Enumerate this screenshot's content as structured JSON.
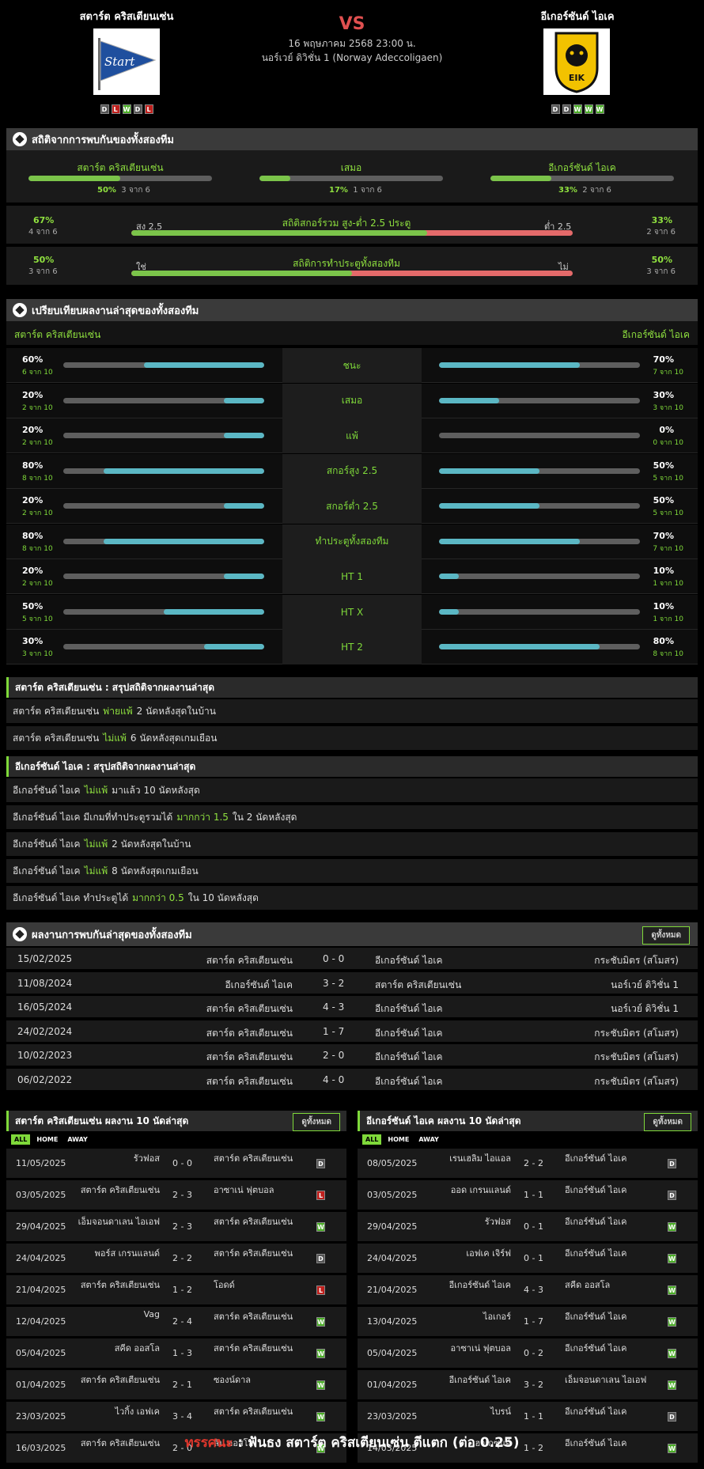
{
  "match": {
    "home": "สตาร์ต คริสเตียนเซ่น",
    "away": "อีเกอร์ซันด์ ไอเค",
    "vs": "VS",
    "date": "16 พฤษภาคม 2568 23:00 น.",
    "league": "นอร์เวย์ ดิวิชั่น 1 (Norway Adeccoligaen)",
    "home_form": [
      "D",
      "L",
      "W",
      "D",
      "L"
    ],
    "away_form": [
      "D",
      "D",
      "W",
      "W",
      "W"
    ],
    "home_logo_text": "Start",
    "away_logo_text": "EIK"
  },
  "h2h_stats": {
    "title": "สถิติจากการพบกันของทั้งสองทีม",
    "home": {
      "label": "สตาร์ต คริสเตียนเซ่น",
      "pct": "50%",
      "count": "3 จาก 6",
      "frac": 0.5
    },
    "draw": {
      "label": "เสมอ",
      "pct": "17%",
      "count": "1 จาก 6",
      "frac": 0.17
    },
    "away": {
      "label": "อีเกอร์ซันด์ ไอเค",
      "pct": "33%",
      "count": "2 จาก 6",
      "frac": 0.33
    }
  },
  "ou": {
    "title": "สถิติสกอร์รวม สูง-ต่ำ 2.5 ประตู",
    "left_pct": "67%",
    "left_count": "4 จาก 6",
    "left_lbl": "สูง 2.5",
    "right_lbl": "ต่ำ 2.5",
    "right_pct": "33%",
    "right_count": "2 จาก 6",
    "frac": 0.67
  },
  "btts": {
    "title": "สถิติการทำประตูทั้งสองทีม",
    "left_pct": "50%",
    "left_count": "3 จาก 6",
    "left_lbl": "ใช่",
    "right_lbl": "ไม่",
    "right_pct": "50%",
    "right_count": "3 จาก 6",
    "frac": 0.5
  },
  "compare": {
    "title": "เปรียบเทียบผลงานล่าสุดของทั้งสองทีม",
    "home": "สตาร์ต คริสเตียนเซ่น",
    "away": "อีเกอร์ซันด์ ไอเค",
    "rows": [
      {
        "label": "ชนะ",
        "hp": "60%",
        "hs": "6 จาก 10",
        "hf": 0.6,
        "ap": "70%",
        "as": "7 จาก 10",
        "af": 0.7
      },
      {
        "label": "เสมอ",
        "hp": "20%",
        "hs": "2 จาก 10",
        "hf": 0.2,
        "ap": "30%",
        "as": "3 จาก 10",
        "af": 0.3
      },
      {
        "label": "แพ้",
        "hp": "20%",
        "hs": "2 จาก 10",
        "hf": 0.2,
        "ap": "0%",
        "as": "0 จาก 10",
        "af": 0
      },
      {
        "label": "สกอร์สูง 2.5",
        "hp": "80%",
        "hs": "8 จาก 10",
        "hf": 0.8,
        "ap": "50%",
        "as": "5 จาก 10",
        "af": 0.5
      },
      {
        "label": "สกอร์ต่ำ 2.5",
        "hp": "20%",
        "hs": "2 จาก 10",
        "hf": 0.2,
        "ap": "50%",
        "as": "5 จาก 10",
        "af": 0.5
      },
      {
        "label": "ทำประตูทั้งสองทีม",
        "hp": "80%",
        "hs": "8 จาก 10",
        "hf": 0.8,
        "ap": "70%",
        "as": "7 จาก 10",
        "af": 0.7
      },
      {
        "label": "HT 1",
        "hp": "20%",
        "hs": "2 จาก 10",
        "hf": 0.2,
        "ap": "10%",
        "as": "1 จาก 10",
        "af": 0.1
      },
      {
        "label": "HT X",
        "hp": "50%",
        "hs": "5 จาก 10",
        "hf": 0.5,
        "ap": "10%",
        "as": "1 จาก 10",
        "af": 0.1
      },
      {
        "label": "HT 2",
        "hp": "30%",
        "hs": "3 จาก 10",
        "hf": 0.3,
        "ap": "80%",
        "as": "8 จาก 10",
        "af": 0.8
      }
    ]
  },
  "home_summary": {
    "title": "สตาร์ต คริสเตียนเซ่น : สรุปสถิติจากผลงานล่าสุด",
    "rows": [
      {
        "a": "สตาร์ต คริสเตียนเซ่น",
        "g": "พ่ายแพ้",
        "b": "2 นัดหลังสุดในบ้าน"
      },
      {
        "a": "สตาร์ต คริสเตียนเซ่น",
        "g": "ไม่แพ้",
        "b": "6 นัดหลังสุดเกมเยือน"
      }
    ]
  },
  "away_summary": {
    "title": "อีเกอร์ซันด์ ไอเค : สรุปสถิติจากผลงานล่าสุด",
    "rows": [
      {
        "a": "อีเกอร์ซันด์ ไอเค",
        "g": "ไม่แพ้",
        "b": "มาแล้ว 10 นัดหลังสุด"
      },
      {
        "a": "อีเกอร์ซันด์ ไอเค มีเกมที่ทำประตูรวมได้",
        "g": "มากกว่า 1.5",
        "b": "ใน 2 นัดหลังสุด"
      },
      {
        "a": "อีเกอร์ซันด์ ไอเค",
        "g": "ไม่แพ้",
        "b": "2 นัดหลังสุดในบ้าน"
      },
      {
        "a": "อีเกอร์ซันด์ ไอเค",
        "g": "ไม่แพ้",
        "b": "8 นัดหลังสุดเกมเยือน"
      },
      {
        "a": "อีเกอร์ซันด์ ไอเค ทำประตูได้",
        "g": "มากกว่า 0.5",
        "b": "ใน 10 นัดหลังสุด"
      }
    ]
  },
  "h2h": {
    "title": "ผลงานการพบกันล่าสุดของทั้งสองทีม",
    "view_all": "ดูทั้งหมด",
    "rows": [
      {
        "d": "15/02/2025",
        "h": "สตาร์ต คริสเตียนเซ่น",
        "s": "0 - 0",
        "a": "อีเกอร์ซันด์ ไอเค",
        "c": "กระชับมิตร (สโมสร)"
      },
      {
        "d": "11/08/2024",
        "h": "อีเกอร์ซันด์ ไอเค",
        "s": "3 - 2",
        "a": "สตาร์ต คริสเตียนเซ่น",
        "c": "นอร์เวย์ ดิวิชั่น 1"
      },
      {
        "d": "16/05/2024",
        "h": "สตาร์ต คริสเตียนเซ่น",
        "s": "4 - 3",
        "a": "อีเกอร์ซันด์ ไอเค",
        "c": "นอร์เวย์ ดิวิชั่น 1"
      },
      {
        "d": "24/02/2024",
        "h": "สตาร์ต คริสเตียนเซ่น",
        "s": "1 - 7",
        "a": "อีเกอร์ซันด์ ไอเค",
        "c": "กระชับมิตร (สโมสร)"
      },
      {
        "d": "10/02/2023",
        "h": "สตาร์ต คริสเตียนเซ่น",
        "s": "2 - 0",
        "a": "อีเกอร์ซันด์ ไอเค",
        "c": "กระชับมิตร (สโมสร)"
      },
      {
        "d": "06/02/2022",
        "h": "สตาร์ต คริสเตียนเซ่น",
        "s": "4 - 0",
        "a": "อีเกอร์ซันด์ ไอเค",
        "c": "กระชับมิตร (สโมสร)"
      }
    ]
  },
  "filters": [
    "ALL",
    "HOME",
    "AWAY"
  ],
  "home_last": {
    "title": "สตาร์ต คริสเตียนเซ่น ผลงาน 10 นัดล่าสุด",
    "view_all": "ดูทั้งหมด",
    "rows": [
      {
        "d": "11/05/2025",
        "h": "รัวฟอส",
        "s": "0 - 0",
        "a": "สตาร์ต คริสเตียนเซ่น",
        "r": "D"
      },
      {
        "d": "03/05/2025",
        "h": "สตาร์ต คริสเตียนเซ่น",
        "s": "2 - 3",
        "a": "อาซาเน่ ฟุตบอล",
        "r": "L"
      },
      {
        "d": "29/04/2025",
        "h": "เอ็มจอนดาเลน ไอเอฟ",
        "s": "2 - 3",
        "a": "สตาร์ต คริสเตียนเซ่น",
        "r": "W"
      },
      {
        "d": "24/04/2025",
        "h": "พอร์ส เกรนแลนด์",
        "s": "2 - 2",
        "a": "สตาร์ต คริสเตียนเซ่น",
        "r": "D"
      },
      {
        "d": "21/04/2025",
        "h": "สตาร์ต คริสเตียนเซ่น",
        "s": "1 - 2",
        "a": "โอดด์",
        "r": "L"
      },
      {
        "d": "12/04/2025",
        "h": "Vag",
        "s": "2 - 4",
        "a": "สตาร์ต คริสเตียนเซ่น",
        "r": "W"
      },
      {
        "d": "05/04/2025",
        "h": "สคีด ออสโล",
        "s": "1 - 3",
        "a": "สตาร์ต คริสเตียนเซ่น",
        "r": "W"
      },
      {
        "d": "01/04/2025",
        "h": "สตาร์ต คริสเตียนเซ่น",
        "s": "2 - 1",
        "a": "ซองน์ดาล",
        "r": "W"
      },
      {
        "d": "23/03/2025",
        "h": "ไวกิ้ง เอฟเค",
        "s": "3 - 4",
        "a": "สตาร์ต คริสเตียนเซ่น",
        "r": "W"
      },
      {
        "d": "16/03/2025",
        "h": "สตาร์ต คริสเตียนเซ่น",
        "s": "2 - 0",
        "a": "ลิน ออสโล",
        "r": "W"
      }
    ]
  },
  "away_last": {
    "title": "อีเกอร์ซันด์ ไอเค ผลงาน 10 นัดล่าสุด",
    "view_all": "ดูทั้งหมด",
    "rows": [
      {
        "d": "08/05/2025",
        "h": "เรนเฮลิม ไอแอล",
        "s": "2 - 2",
        "a": "อีเกอร์ซันด์ ไอเค",
        "r": "D"
      },
      {
        "d": "03/05/2025",
        "h": "ออด เกรนแลนด์",
        "s": "1 - 1",
        "a": "อีเกอร์ซันด์ ไอเค",
        "r": "D"
      },
      {
        "d": "29/04/2025",
        "h": "รัวฟอส",
        "s": "0 - 1",
        "a": "อีเกอร์ซันด์ ไอเค",
        "r": "W"
      },
      {
        "d": "24/04/2025",
        "h": "เอฟเค เจิร์ฟ",
        "s": "0 - 1",
        "a": "อีเกอร์ซันด์ ไอเค",
        "r": "W"
      },
      {
        "d": "21/04/2025",
        "h": "อีเกอร์ซันด์ ไอเค",
        "s": "4 - 3",
        "a": "สคีด ออสโล",
        "r": "W"
      },
      {
        "d": "13/04/2025",
        "h": "ไอเกอร์",
        "s": "1 - 7",
        "a": "อีเกอร์ซันด์ ไอเค",
        "r": "W"
      },
      {
        "d": "05/04/2025",
        "h": "อาซาเน่ ฟุตบอล",
        "s": "0 - 2",
        "a": "อีเกอร์ซันด์ ไอเค",
        "r": "W"
      },
      {
        "d": "01/04/2025",
        "h": "อีเกอร์ซันด์ ไอเค",
        "s": "3 - 2",
        "a": "เอ็มจอนดาเลน ไอเอฟ",
        "r": "W"
      },
      {
        "d": "23/03/2025",
        "h": "ไบรน์",
        "s": "1 - 1",
        "a": "อีเกอร์ซันด์ ไอเค",
        "r": "D"
      },
      {
        "d": "14/03/2025",
        "h": "เฮาเกซุนด์",
        "s": "1 - 2",
        "a": "อีเกอร์ซันด์ ไอเค",
        "r": "W"
      }
    ]
  },
  "verdict": {
    "label": "ทรรศนะ",
    "colon": " : ",
    "text": "ฟันธง สตาร์ต คริสเตียนเซ่น ตีแตก (ต่อ 0.25)"
  },
  "colors": {
    "accent": "#7fd93a",
    "bar_fill": "#7bc44a",
    "compare_fill": "#5bb7c4",
    "over_red": "#e46a6a",
    "verdict_red": "#e0362c"
  }
}
